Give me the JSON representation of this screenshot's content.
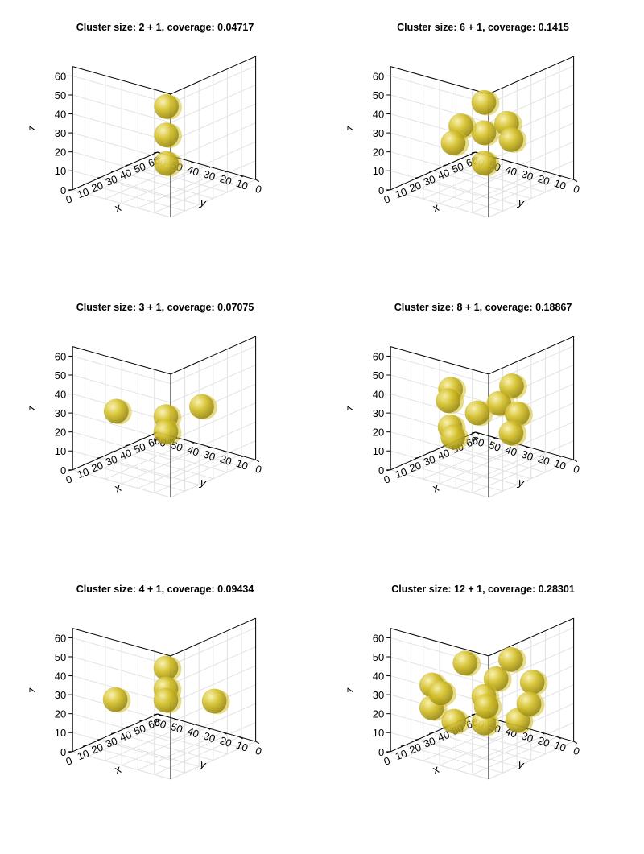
{
  "figure": {
    "sphere_color": "#d4c02a"
  },
  "chart_data": [
    {
      "type": "scatter3d",
      "title": "Cluster size: 2 + 1, coverage: 0.04717",
      "xlabel": "x",
      "ylabel": "y",
      "zlabel": "z",
      "xlim": [
        0,
        60
      ],
      "ylim": [
        0,
        60
      ],
      "zlim": [
        0,
        65
      ],
      "xticks": [
        "0",
        "10",
        "20",
        "30",
        "40",
        "50",
        "60"
      ],
      "yticks": [
        "0",
        "10",
        "20",
        "30",
        "40",
        "50",
        "60"
      ],
      "zticks": [
        "0",
        "10",
        "20",
        "30",
        "40",
        "50",
        "60"
      ],
      "grid": true,
      "points": [
        {
          "x": 20,
          "y": 20,
          "z": 47
        },
        {
          "x": 20,
          "y": 20,
          "z": 32
        },
        {
          "x": 20,
          "y": 20,
          "z": 17
        }
      ]
    },
    {
      "type": "scatter3d",
      "title": "Cluster size: 6 + 1, coverage: 0.1415",
      "xlabel": "x",
      "ylabel": "y",
      "zlabel": "z",
      "xlim": [
        0,
        60
      ],
      "ylim": [
        0,
        60
      ],
      "zlim": [
        0,
        65
      ],
      "xticks": [
        "0",
        "10",
        "20",
        "30",
        "40",
        "50",
        "60"
      ],
      "yticks": [
        "0",
        "10",
        "20",
        "30",
        "40",
        "50",
        "60"
      ],
      "zticks": [
        "0",
        "10",
        "20",
        "30",
        "40",
        "50",
        "60"
      ],
      "grid": true,
      "points": [
        {
          "x": 22,
          "y": 22,
          "z": 48
        },
        {
          "x": 30,
          "y": 15,
          "z": 36
        },
        {
          "x": 15,
          "y": 30,
          "z": 36
        },
        {
          "x": 22,
          "y": 22,
          "z": 32
        },
        {
          "x": 32,
          "y": 14,
          "z": 27
        },
        {
          "x": 13,
          "y": 33,
          "z": 27
        },
        {
          "x": 22,
          "y": 22,
          "z": 16
        }
      ]
    },
    {
      "type": "scatter3d",
      "title": "Cluster size: 3 + 1, coverage: 0.07075",
      "xlabel": "x",
      "ylabel": "y",
      "zlabel": "z",
      "xlim": [
        0,
        60
      ],
      "ylim": [
        0,
        60
      ],
      "zlim": [
        0,
        65
      ],
      "xticks": [
        "0",
        "10",
        "20",
        "30",
        "40",
        "50",
        "60"
      ],
      "yticks": [
        "0",
        "10",
        "20",
        "30",
        "40",
        "50",
        "60"
      ],
      "zticks": [
        "0",
        "10",
        "20",
        "30",
        "40",
        "50",
        "60"
      ],
      "grid": true,
      "points": [
        {
          "x": 10,
          "y": 42,
          "z": 32
        },
        {
          "x": 38,
          "y": 14,
          "z": 32
        },
        {
          "x": 22,
          "y": 22,
          "z": 30
        },
        {
          "x": 22,
          "y": 22,
          "z": 22
        }
      ]
    },
    {
      "type": "scatter3d",
      "title": "Cluster size: 8 + 1, coverage: 0.18867",
      "xlabel": "x",
      "ylabel": "y",
      "zlabel": "z",
      "xlim": [
        0,
        60
      ],
      "ylim": [
        0,
        60
      ],
      "zlim": [
        0,
        65
      ],
      "xticks": [
        "0",
        "10",
        "20",
        "30",
        "40",
        "50",
        "60"
      ],
      "yticks": [
        "0",
        "10",
        "20",
        "30",
        "40",
        "50",
        "60"
      ],
      "zticks": [
        "0",
        "10",
        "20",
        "30",
        "40",
        "50",
        "60"
      ],
      "grid": true,
      "points": [
        {
          "x": 10,
          "y": 32,
          "z": 46
        },
        {
          "x": 30,
          "y": 12,
          "z": 46
        },
        {
          "x": 13,
          "y": 36,
          "z": 38
        },
        {
          "x": 28,
          "y": 18,
          "z": 36
        },
        {
          "x": 22,
          "y": 26,
          "z": 31
        },
        {
          "x": 34,
          "y": 12,
          "z": 30
        },
        {
          "x": 12,
          "y": 34,
          "z": 25
        },
        {
          "x": 32,
          "y": 14,
          "z": 20
        },
        {
          "x": 14,
          "y": 34,
          "z": 19
        }
      ]
    },
    {
      "type": "scatter3d",
      "title": "Cluster size: 4 + 1, coverage: 0.09434",
      "xlabel": "x",
      "ylabel": "y",
      "zlabel": "z",
      "xlim": [
        0,
        60
      ],
      "ylim": [
        0,
        60
      ],
      "zlim": [
        0,
        65
      ],
      "xticks": [
        "0",
        "10",
        "20",
        "30",
        "40",
        "50",
        "60"
      ],
      "yticks": [
        "0",
        "10",
        "20",
        "30",
        "40",
        "50",
        "60"
      ],
      "zticks": [
        "0",
        "10",
        "20",
        "30",
        "40",
        "50",
        "60"
      ],
      "grid": true,
      "points": [
        {
          "x": 22,
          "y": 22,
          "z": 46
        },
        {
          "x": 22,
          "y": 22,
          "z": 35
        },
        {
          "x": 7,
          "y": 40,
          "z": 30
        },
        {
          "x": 40,
          "y": 8,
          "z": 26
        },
        {
          "x": 22,
          "y": 22,
          "z": 29
        }
      ]
    },
    {
      "type": "scatter3d",
      "title": "Cluster size: 12 + 1, coverage: 0.28301",
      "xlabel": "x",
      "ylabel": "y",
      "zlabel": "z",
      "xlim": [
        0,
        60
      ],
      "ylim": [
        0,
        60
      ],
      "zlim": [
        0,
        65
      ],
      "xticks": [
        "0",
        "10",
        "20",
        "30",
        "40",
        "50",
        "60"
      ],
      "yticks": [
        "0",
        "10",
        "20",
        "30",
        "40",
        "50",
        "60"
      ],
      "zticks": [
        "0",
        "10",
        "20",
        "30",
        "40",
        "50",
        "60"
      ],
      "grid": true,
      "points": [
        {
          "x": 18,
          "y": 30,
          "z": 48
        },
        {
          "x": 34,
          "y": 16,
          "z": 48
        },
        {
          "x": 6,
          "y": 40,
          "z": 38
        },
        {
          "x": 26,
          "y": 18,
          "z": 40
        },
        {
          "x": 40,
          "y": 8,
          "z": 36
        },
        {
          "x": 10,
          "y": 38,
          "z": 33
        },
        {
          "x": 22,
          "y": 22,
          "z": 31
        },
        {
          "x": 40,
          "y": 10,
          "z": 24
        },
        {
          "x": 6,
          "y": 40,
          "z": 26
        },
        {
          "x": 26,
          "y": 24,
          "z": 24
        },
        {
          "x": 10,
          "y": 30,
          "z": 20
        },
        {
          "x": 32,
          "y": 10,
          "z": 18
        },
        {
          "x": 22,
          "y": 22,
          "z": 17
        }
      ]
    }
  ]
}
